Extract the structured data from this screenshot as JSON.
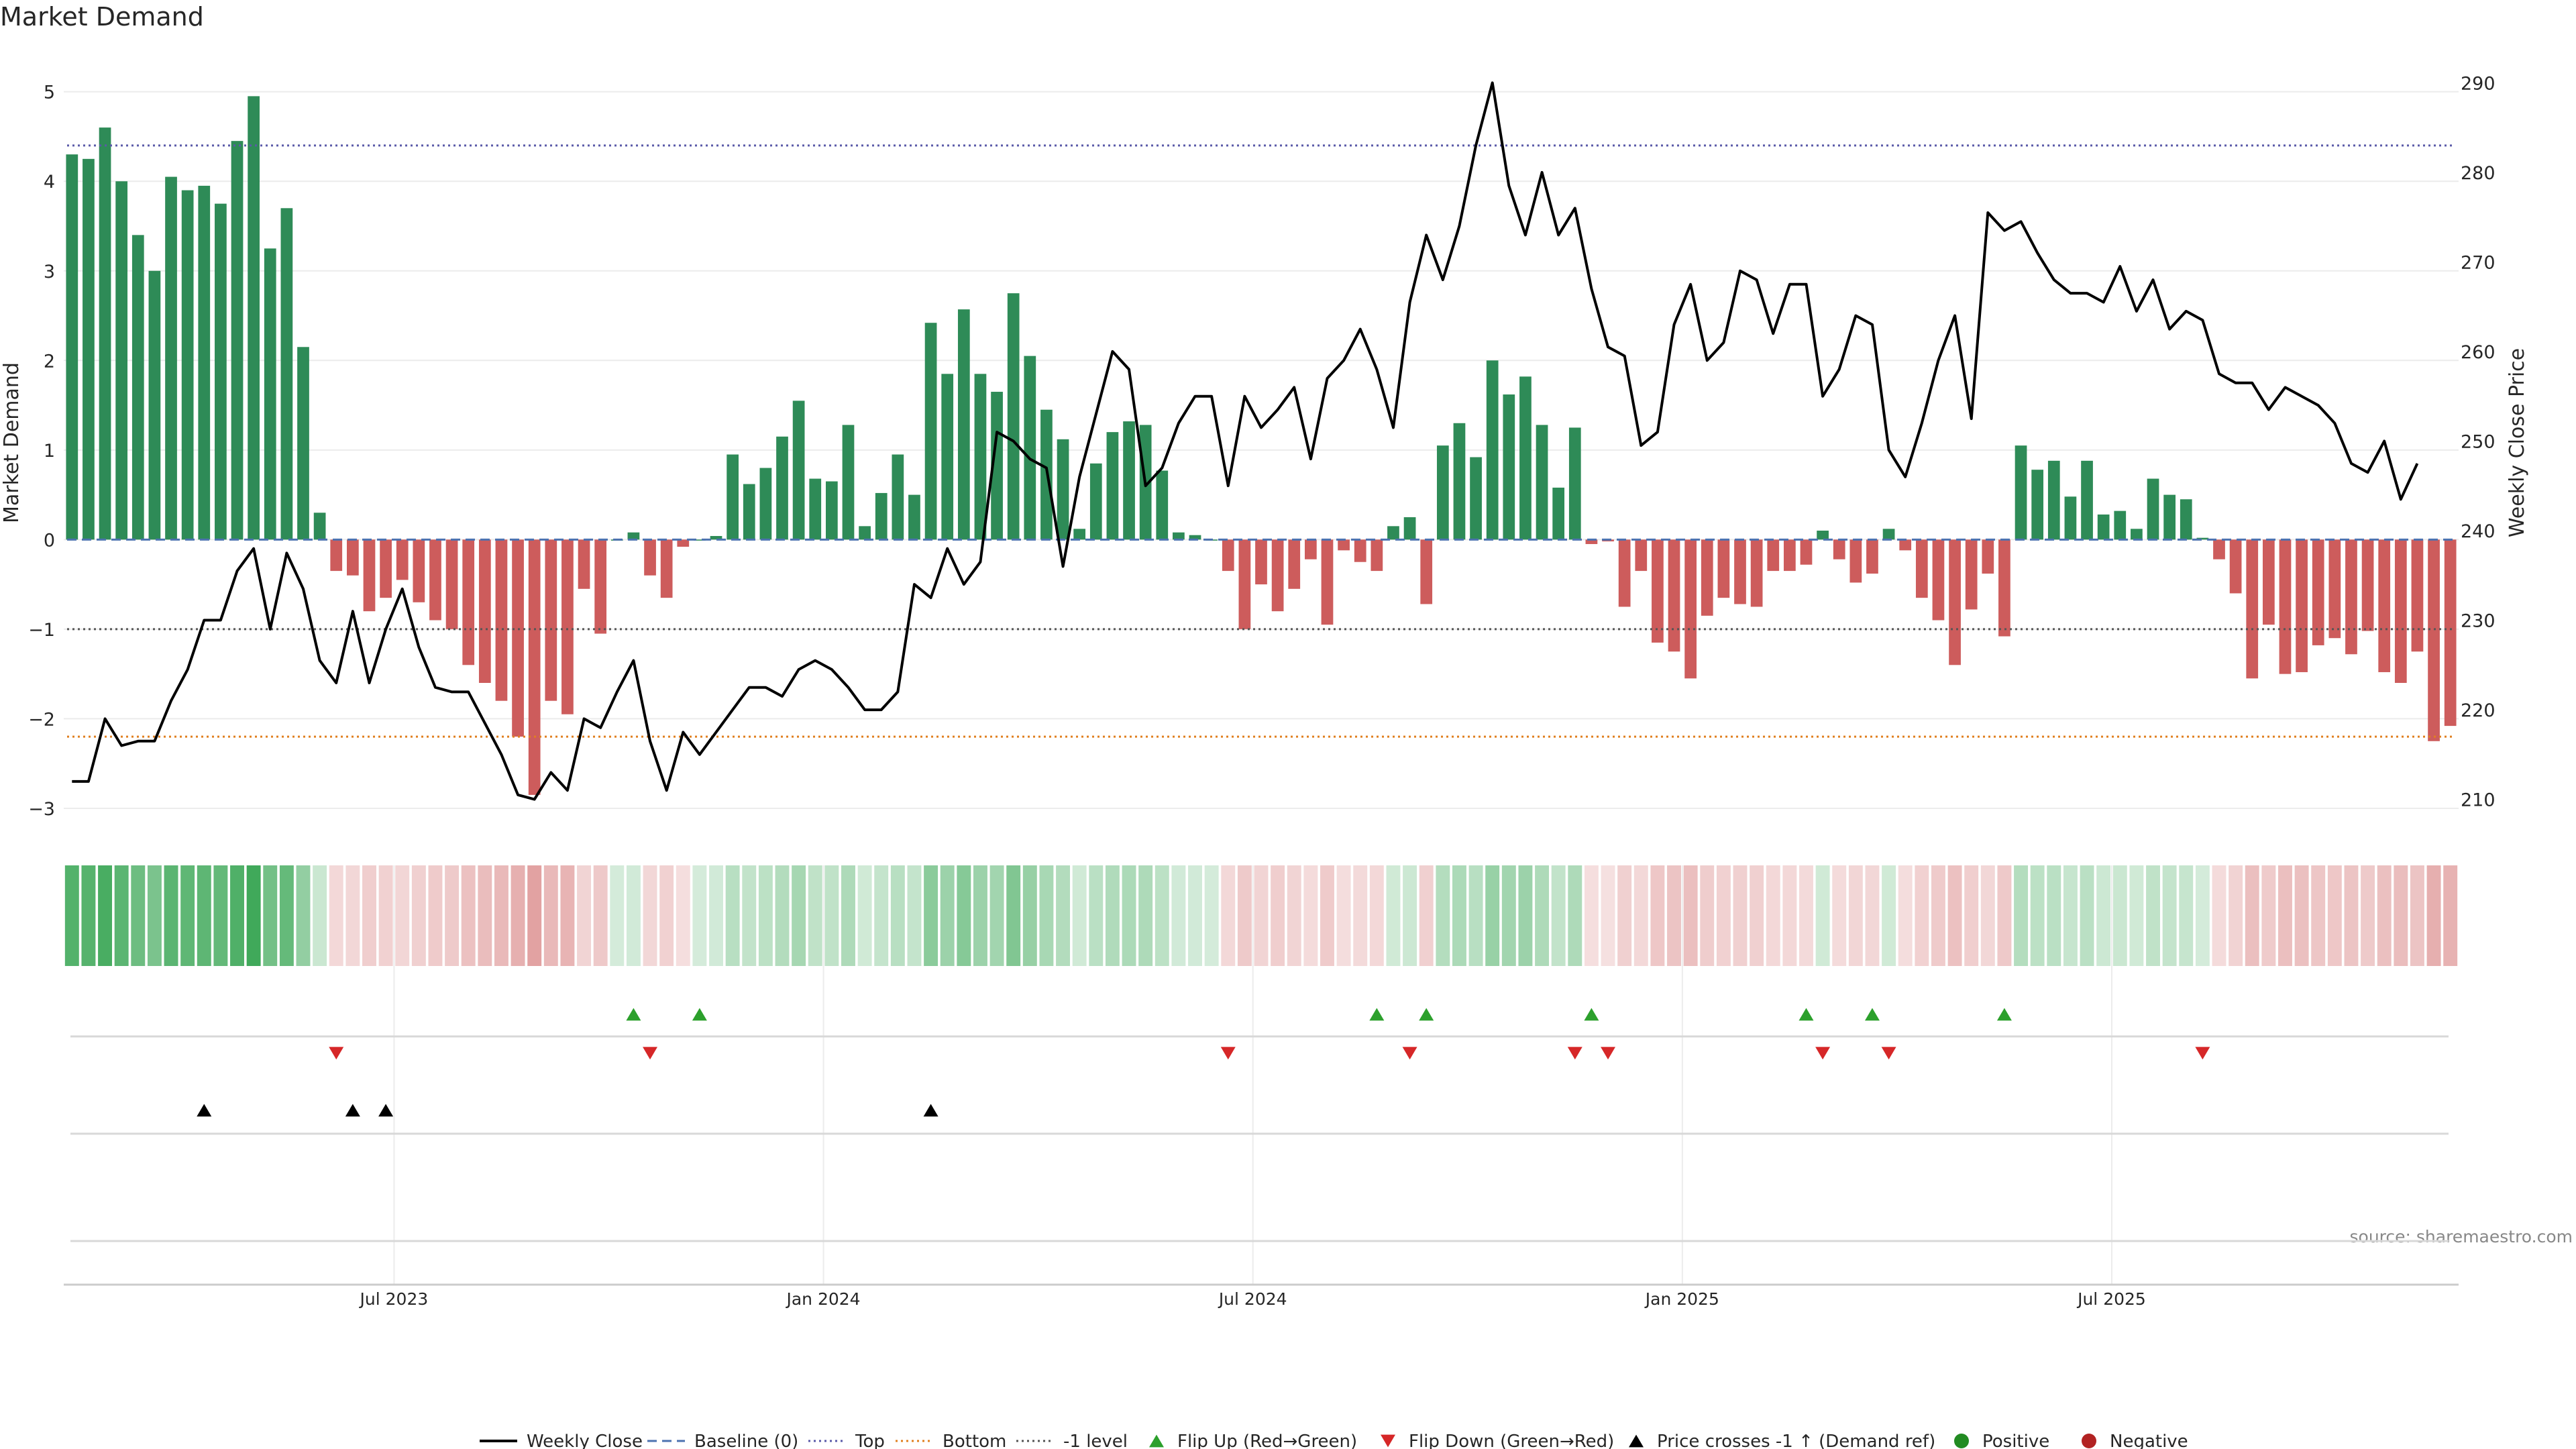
{
  "chart_data": {
    "type": "bar+line",
    "title": "Market Demand",
    "ylabel_left": "Market Demand",
    "ylabel_right": "Weekly Close Price",
    "source": "source: sharemaestro.com",
    "ylim_left": [
      -3.3,
      5.2
    ],
    "ylim_right": [
      206,
      291
    ],
    "yticks_left": [
      "5",
      "4",
      "3",
      "2",
      "1",
      "0",
      "−1",
      "−2",
      "−3"
    ],
    "yticks_right": [
      "290",
      "280",
      "270",
      "260",
      "250",
      "240",
      "230",
      "220",
      "210"
    ],
    "xticks": [
      {
        "label": "Jul 2023",
        "week": 20
      },
      {
        "label": "Jan 2024",
        "week": 46
      },
      {
        "label": "Jul 2024",
        "week": 72
      },
      {
        "label": "Jan 2025",
        "week": 98
      },
      {
        "label": "Jul 2025",
        "week": 124
      }
    ],
    "reference_lines": {
      "top": 4.4,
      "bottom": -2.2,
      "minus1": -1,
      "baseline": 0
    },
    "demand": [
      4.3,
      4.25,
      4.6,
      4.0,
      3.4,
      3.0,
      4.05,
      3.9,
      3.95,
      3.75,
      4.45,
      4.95,
      3.25,
      3.7,
      2.15,
      0.3,
      -0.35,
      -0.4,
      -0.8,
      -0.65,
      -0.45,
      -0.7,
      -0.9,
      -1.0,
      -1.4,
      -1.6,
      -1.8,
      -2.2,
      -2.85,
      -1.8,
      -1.95,
      -0.55,
      -1.05,
      0,
      0.08,
      -0.4,
      -0.65,
      -0.08,
      0,
      0.04,
      0.95,
      0.62,
      0.8,
      1.15,
      1.55,
      0.68,
      0.65,
      1.28,
      0.15,
      0.52,
      0.95,
      0.5,
      2.42,
      1.85,
      2.57,
      1.85,
      1.65,
      2.75,
      2.05,
      1.45,
      1.12,
      0.12,
      0.85,
      1.2,
      1.32,
      1.28,
      0.77,
      0.08,
      0.05,
      0,
      -0.35,
      -1.0,
      -0.5,
      -0.8,
      -0.55,
      -0.22,
      -0.95,
      -0.12,
      -0.25,
      -0.35,
      0.15,
      0.25,
      -0.72,
      1.05,
      1.3,
      0.92,
      2.0,
      1.62,
      1.82,
      1.28,
      0.58,
      1.25,
      -0.05,
      -0.02,
      -0.75,
      -0.35,
      -1.15,
      -1.25,
      -1.55,
      -0.85,
      -0.65,
      -0.72,
      -0.75,
      -0.35,
      -0.35,
      -0.28,
      0.1,
      -0.22,
      -0.48,
      -0.38,
      0.12,
      -0.12,
      -0.65,
      -0.9,
      -1.4,
      -0.78,
      -0.38,
      -1.08,
      1.05,
      0.78,
      0.88,
      0.48,
      0.88,
      0.28,
      0.32,
      0.12,
      0.68,
      0.5,
      0.45,
      0.02,
      -0.22,
      -0.6,
      -1.55,
      -0.95,
      -1.5,
      -1.48,
      -1.18,
      -1.1,
      -1.28,
      -1.02,
      -1.48,
      -1.6,
      -1.25,
      -2.25,
      -2.08
    ],
    "price": [
      212,
      212,
      219,
      216,
      216.5,
      216.5,
      221,
      224.5,
      230,
      230,
      235.5,
      238,
      229,
      237.5,
      233.5,
      225.5,
      223,
      231,
      223,
      229,
      233.5,
      227,
      222.5,
      222,
      222,
      218.5,
      215,
      210.5,
      210,
      213,
      211,
      219,
      218,
      222,
      225.5,
      216.5,
      211,
      217.5,
      215,
      217.5,
      220,
      222.5,
      222.5,
      221.5,
      224.5,
      225.5,
      224.5,
      222.5,
      220,
      220,
      222,
      234,
      232.5,
      238,
      234,
      236.5,
      251,
      250,
      248,
      247,
      236,
      246,
      253,
      260,
      258,
      245,
      247,
      252,
      255,
      255,
      245,
      255,
      251.5,
      253.5,
      256,
      248,
      257,
      259,
      262.5,
      258,
      251.5,
      265.5,
      273,
      268,
      274,
      283,
      290,
      278.5,
      273,
      280,
      273,
      276,
      267,
      260.5,
      259.5,
      249.5,
      251,
      263,
      267.5,
      259,
      261,
      269,
      268,
      262,
      267.5,
      267.5,
      255,
      258,
      264,
      263,
      249,
      246,
      252,
      259,
      264,
      252.5,
      275.5,
      273.5,
      274.5,
      271,
      268,
      266.5,
      266.5,
      265.5,
      269.5,
      264.5,
      268,
      262.5,
      264.5,
      263.5,
      257.5,
      256.5,
      256.5,
      253.5,
      256,
      255,
      254,
      252,
      247.5,
      246.5,
      250,
      243.5,
      247.5
    ],
    "flip_up_weeks": [
      34,
      38,
      79,
      82,
      92,
      105,
      109,
      117
    ],
    "flip_down_weeks": [
      16,
      35,
      70,
      81,
      91,
      93,
      106,
      110,
      129
    ],
    "price_cross_weeks": [
      8,
      17,
      19,
      52
    ],
    "legend": [
      {
        "label": "Weekly Close",
        "kind": "line",
        "color": "#000000"
      },
      {
        "label": "Baseline (0)",
        "kind": "dash",
        "color": "#4c72b0"
      },
      {
        "label": "Top",
        "kind": "dot",
        "color": "#5a5aa8"
      },
      {
        "label": "Bottom",
        "kind": "dot",
        "color": "#e08020"
      },
      {
        "label": "-1 level",
        "kind": "dot",
        "color": "#555555"
      },
      {
        "label": "Flip Up (Red→Green)",
        "kind": "tri-up",
        "color": "#2ca02c"
      },
      {
        "label": "Flip Down (Green→Red)",
        "kind": "tri-down",
        "color": "#d62728"
      },
      {
        "label": "Price crosses -1 ↑ (Demand ref)",
        "kind": "tri-up",
        "color": "#000000"
      },
      {
        "label": "Positive",
        "kind": "circle",
        "color": "#228b22"
      },
      {
        "label": "Negative",
        "kind": "circle",
        "color": "#b22222"
      }
    ],
    "colors": {
      "positive": "#2e8b57",
      "negative": "#cd5c5c",
      "strip_positive": "#3aa655",
      "strip_negative": "#d27070",
      "flip_up": "#2ca02c",
      "flip_down": "#d62728"
    }
  }
}
